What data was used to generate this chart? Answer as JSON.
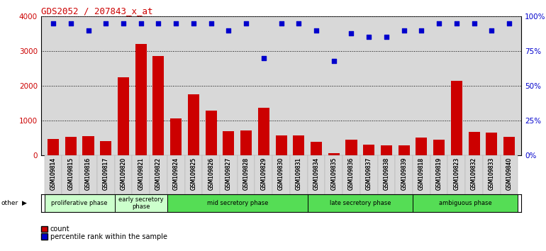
{
  "title": "GDS2052 / 207843_x_at",
  "categories": [
    "GSM109814",
    "GSM109815",
    "GSM109816",
    "GSM109817",
    "GSM109820",
    "GSM109821",
    "GSM109822",
    "GSM109824",
    "GSM109825",
    "GSM109826",
    "GSM109827",
    "GSM109828",
    "GSM109829",
    "GSM109830",
    "GSM109831",
    "GSM109834",
    "GSM109835",
    "GSM109836",
    "GSM109837",
    "GSM109838",
    "GSM109839",
    "GSM109818",
    "GSM109819",
    "GSM109823",
    "GSM109832",
    "GSM109833",
    "GSM109840"
  ],
  "bar_values": [
    480,
    540,
    560,
    420,
    2250,
    3200,
    2850,
    1060,
    1760,
    1300,
    700,
    730,
    1380,
    570,
    590,
    400,
    70,
    450,
    310,
    300,
    290,
    520,
    460,
    2150,
    680,
    660,
    540
  ],
  "percentile_values": [
    95,
    95,
    90,
    95,
    95,
    95,
    95,
    95,
    95,
    95,
    90,
    95,
    70,
    95,
    95,
    90,
    68,
    88,
    85,
    85,
    90,
    90,
    95,
    95,
    95,
    90,
    95
  ],
  "phase_groups": [
    {
      "label": "proliferative phase",
      "start": 0,
      "end": 3,
      "color": "#ccffcc"
    },
    {
      "label": "early secretory\nphase",
      "start": 4,
      "end": 6,
      "color": "#ccffcc"
    },
    {
      "label": "mid secretory phase",
      "start": 7,
      "end": 14,
      "color": "#55dd55"
    },
    {
      "label": "late secretory phase",
      "start": 15,
      "end": 20,
      "color": "#55dd55"
    },
    {
      "label": "ambiguous phase",
      "start": 21,
      "end": 26,
      "color": "#55dd55"
    }
  ],
  "bar_color": "#cc0000",
  "dot_color": "#0000cc",
  "ylim_left": [
    0,
    4000
  ],
  "ylim_right": [
    0,
    100
  ],
  "yticks_left": [
    0,
    1000,
    2000,
    3000,
    4000
  ],
  "yticks_right": [
    0,
    25,
    50,
    75,
    100
  ],
  "plot_bg_color": "#d8d8d8",
  "title_color": "#cc0000",
  "other_label": "other"
}
